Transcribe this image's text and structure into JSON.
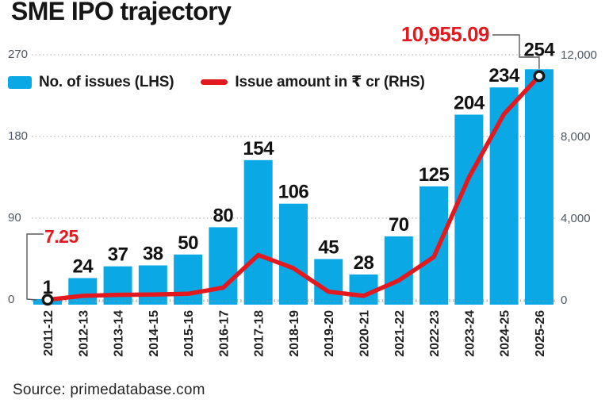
{
  "source": "Source: primedatabase.com",
  "colors": {
    "bar": "#0aa9e6",
    "line": "#e2191f",
    "annotation": "#e2191f",
    "grid": "#a3a3a3",
    "baseline": "#8f8f8f",
    "axis_text": "#4d5662",
    "bar_label": "#121212",
    "x_label": "#222222",
    "callout": "#5a5a5a",
    "marker_stroke": "#161616",
    "title_text": "#161616"
  },
  "chart_data": {
    "type": "bar+line combo",
    "title": "SME IPO trajectory",
    "categories": [
      "2011-12",
      "2012-13",
      "2013-14",
      "2014-15",
      "2015-16",
      "2016-17",
      "2017-18",
      "2018-19",
      "2019-20",
      "2020-21",
      "2021-22",
      "2022-23",
      "2023-24",
      "2024-25",
      "2025-26"
    ],
    "series": [
      {
        "name": "No. of issues (LHS)",
        "type": "bar",
        "axis": "left",
        "values": [
          1,
          24,
          37,
          38,
          50,
          80,
          154,
          106,
          45,
          28,
          70,
          125,
          204,
          234,
          254
        ]
      },
      {
        "name": "Issue amount in ₹ cr (RHS)",
        "type": "line",
        "axis": "right",
        "values": [
          7.25,
          200,
          250,
          260,
          300,
          600,
          2200,
          1550,
          400,
          200,
          950,
          2100,
          6000,
          9100,
          10955.09
        ]
      }
    ],
    "left_axis": {
      "ticks": [
        "0",
        "90",
        "180",
        "270"
      ],
      "range": [
        0,
        270
      ]
    },
    "right_axis": {
      "ticks": [
        "0",
        "4,000",
        "8,000",
        "12,000"
      ],
      "range": [
        0,
        12000
      ]
    },
    "annotations": [
      {
        "text": "7.25",
        "point_index": 0,
        "target": "line first point (2011-12)"
      },
      {
        "text": "10,955.09",
        "point_index": 14,
        "target": "line last point (2025-26)"
      }
    ],
    "grid": "horizontal dotted",
    "legend_position": "top-left"
  }
}
